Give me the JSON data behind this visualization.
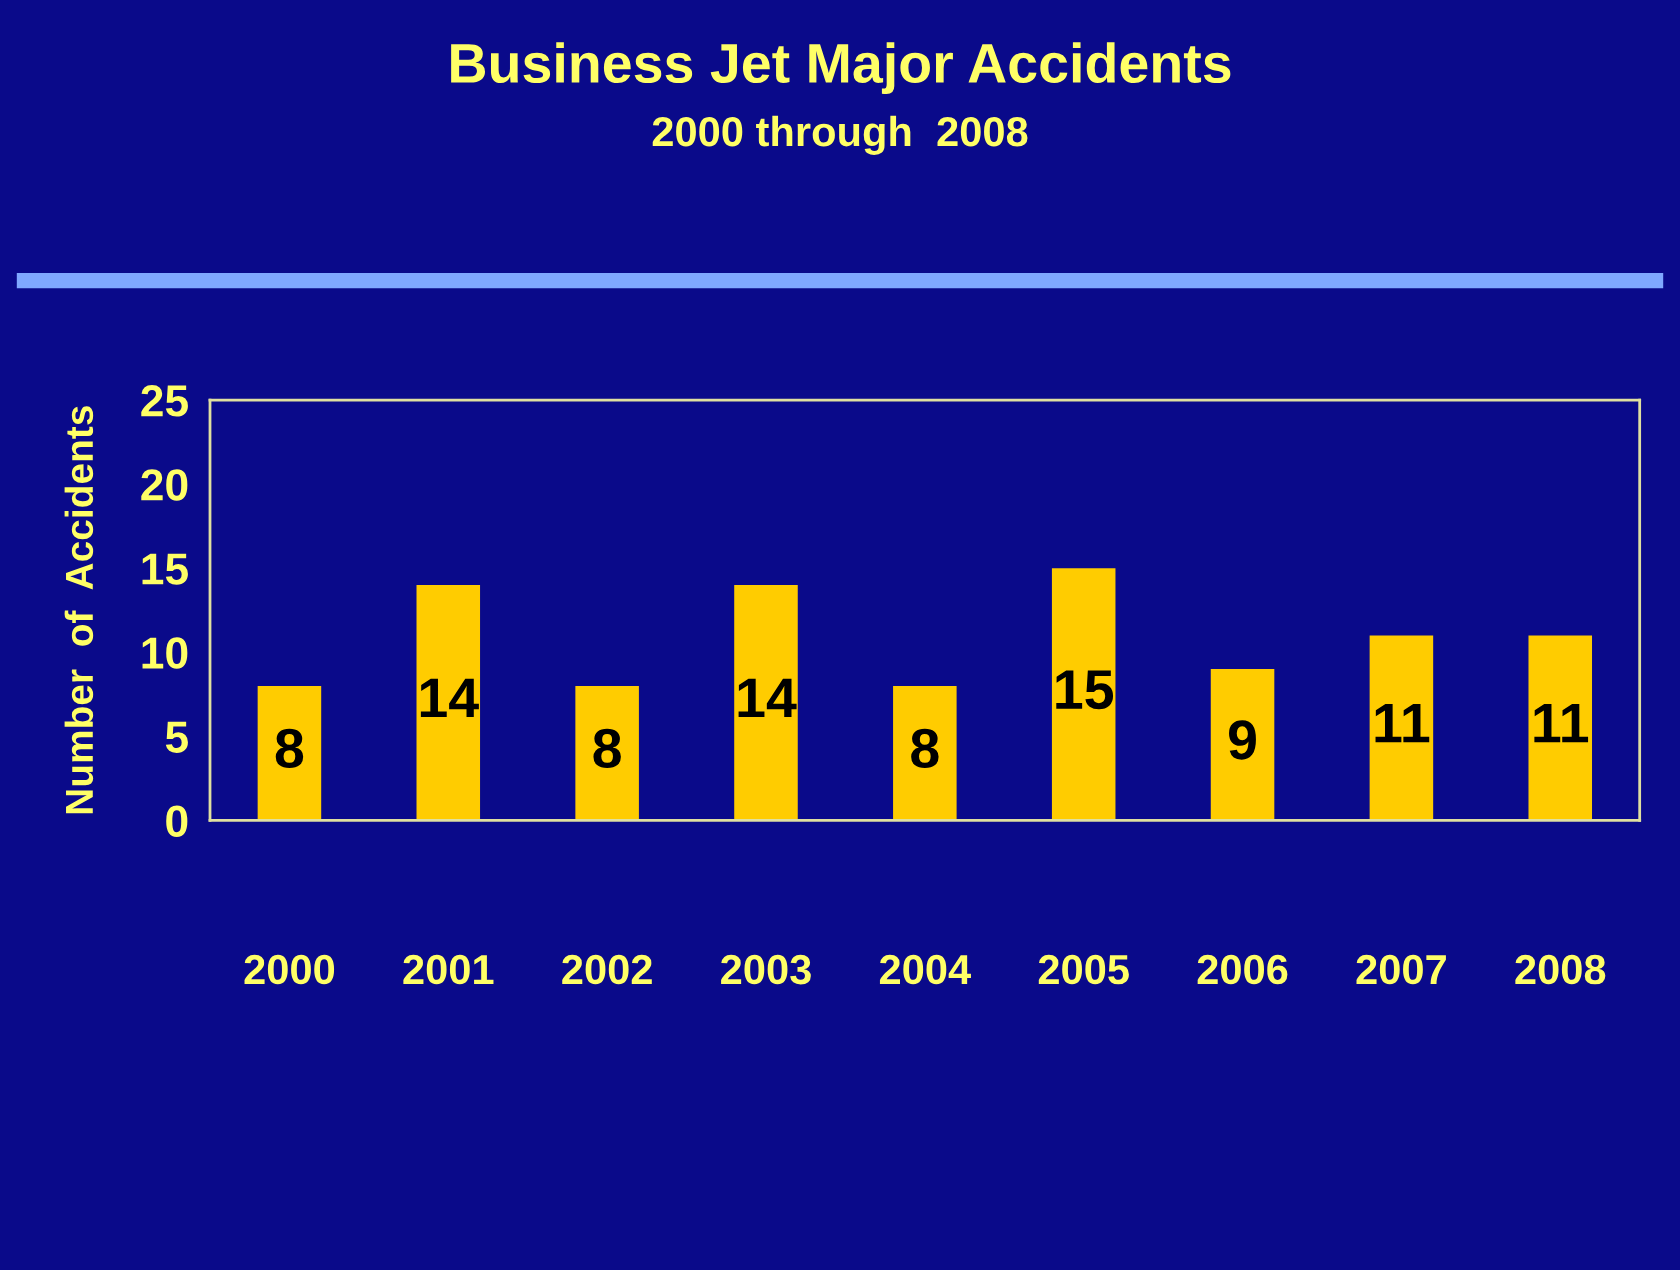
{
  "chart_data": {
    "type": "bar",
    "title": "Business Jet Major Accidents",
    "subtitle": "2000 through  2008",
    "ylabel": "Number  of  Accidents",
    "categories": [
      "2000",
      "2001",
      "2002",
      "2003",
      "2004",
      "2005",
      "2006",
      "2007",
      "2008"
    ],
    "values": [
      8,
      14,
      8,
      14,
      8,
      15,
      9,
      11,
      11
    ],
    "color": "#ffcc00",
    "ylim": [
      0,
      25
    ],
    "yticks": [
      0,
      5,
      10,
      15,
      20,
      25
    ],
    "grid": false,
    "data_labels": true
  }
}
